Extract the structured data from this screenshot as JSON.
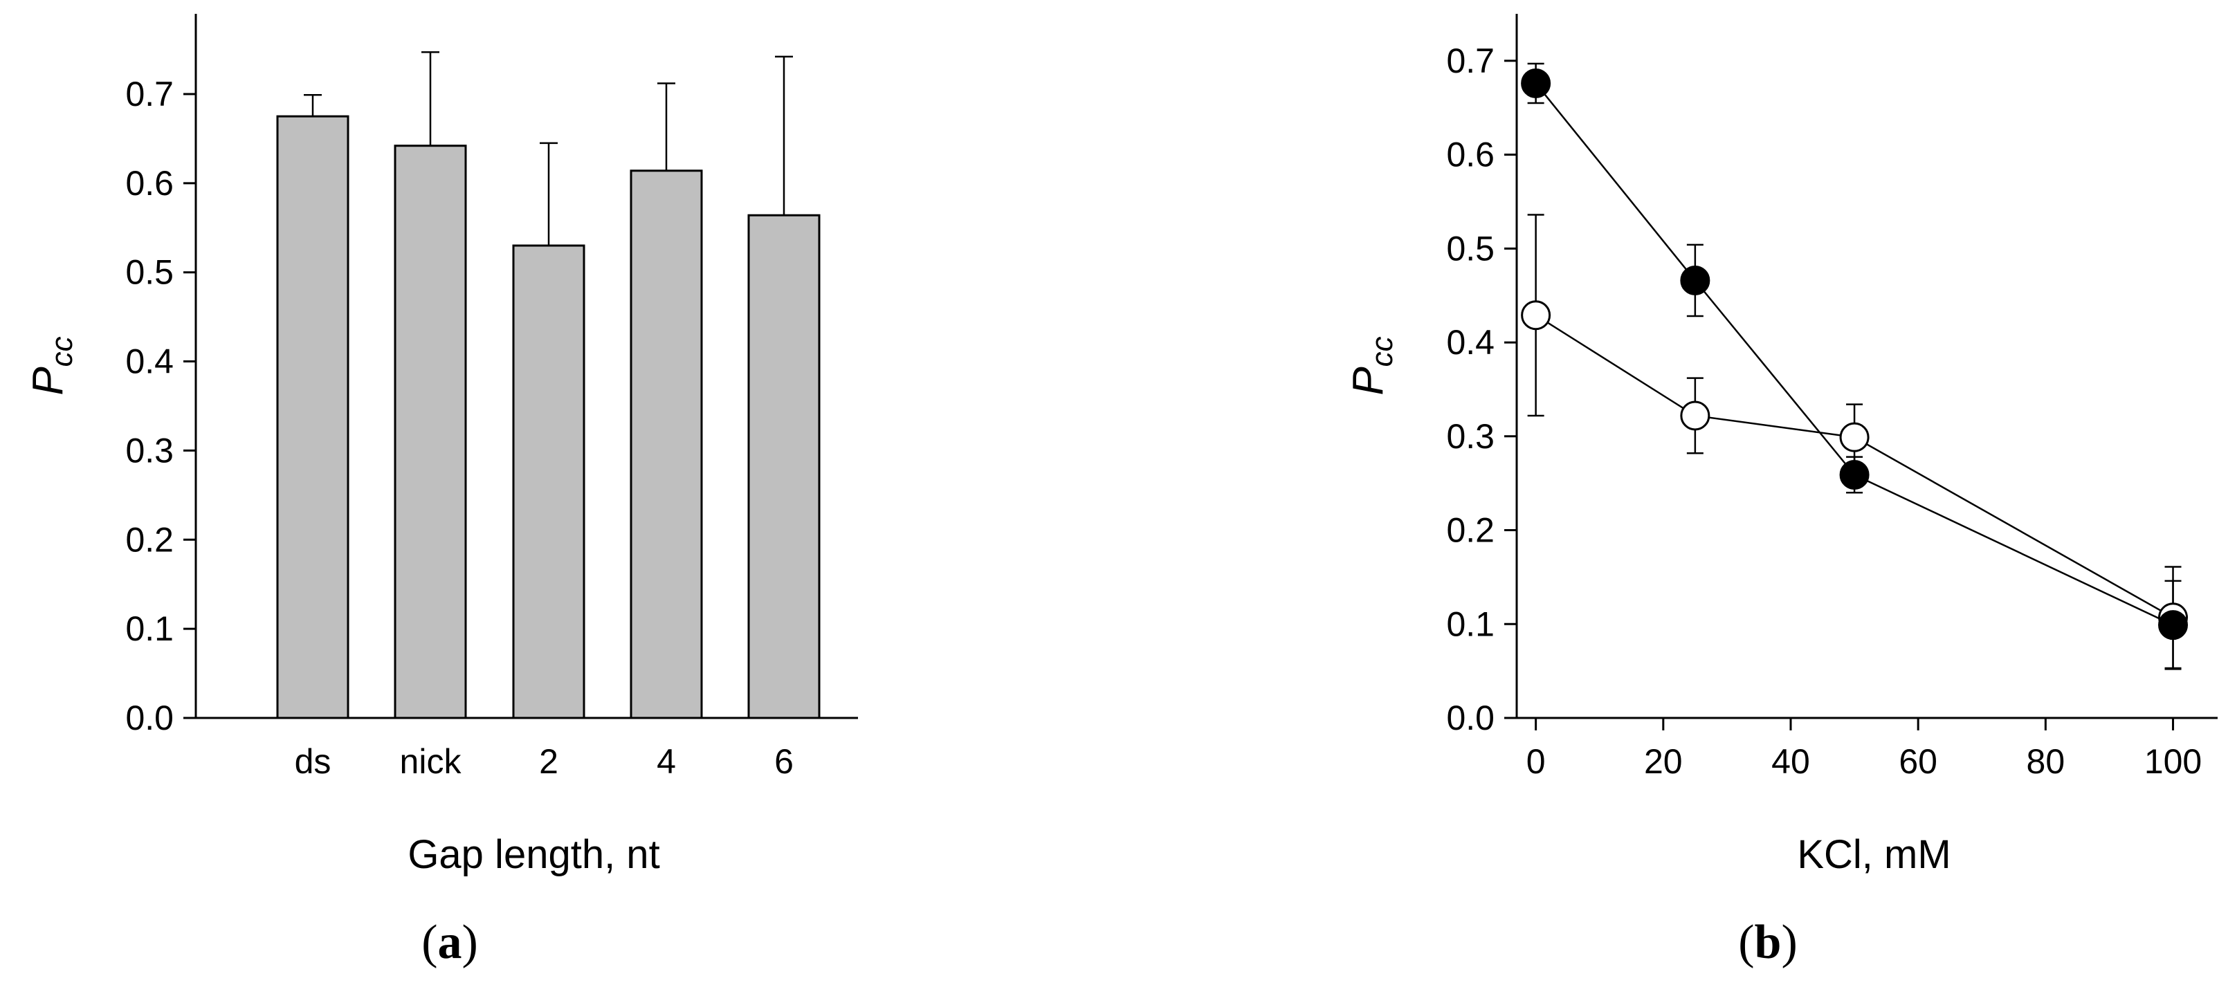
{
  "chart_data": [
    {
      "panel": "(a)",
      "type": "bar",
      "xlabel": "Gap length, nt",
      "ylabel": "P",
      "ylabel_sub": "cc",
      "ylim": [
        0.0,
        0.79
      ],
      "yticks": [
        0.0,
        0.1,
        0.2,
        0.3,
        0.4,
        0.5,
        0.6,
        0.7
      ],
      "ytick_labels": [
        "0.0",
        "0.1",
        "0.2",
        "0.3",
        "0.4",
        "0.5",
        "0.6",
        "0.7"
      ],
      "categories": [
        "ds",
        "nick",
        "2",
        "4",
        "6"
      ],
      "values": [
        0.675,
        0.642,
        0.53,
        0.614,
        0.564
      ],
      "errors": [
        0.024,
        0.105,
        0.115,
        0.098,
        0.178
      ],
      "bar_color": "#bfbfbf",
      "grid": false
    },
    {
      "panel": "(b)",
      "type": "line",
      "xlabel": "KCl, mM",
      "ylabel": "P",
      "ylabel_sub": "cc",
      "xlim": [
        -3,
        107
      ],
      "ylim": [
        0.0,
        0.75
      ],
      "xticks": [
        0,
        20,
        40,
        60,
        80,
        100
      ],
      "xtick_labels": [
        "0",
        "20",
        "40",
        "60",
        "80",
        "100"
      ],
      "yticks": [
        0.0,
        0.1,
        0.2,
        0.3,
        0.4,
        0.5,
        0.6,
        0.7
      ],
      "ytick_labels": [
        "0.0",
        "0.1",
        "0.2",
        "0.3",
        "0.4",
        "0.5",
        "0.6",
        "0.7"
      ],
      "x": [
        0,
        25,
        50,
        100
      ],
      "series": [
        {
          "marker": "filled-circle",
          "color": "#000000",
          "values": [
            0.676,
            0.466,
            0.259,
            0.099
          ],
          "errors": [
            0.021,
            0.038,
            0.019,
            0.047
          ]
        },
        {
          "marker": "open-circle",
          "color": "#ffffff",
          "values": [
            0.429,
            0.322,
            0.299,
            0.107
          ],
          "errors": [
            0.107,
            0.04,
            0.035,
            0.054
          ]
        }
      ],
      "grid": false
    }
  ]
}
